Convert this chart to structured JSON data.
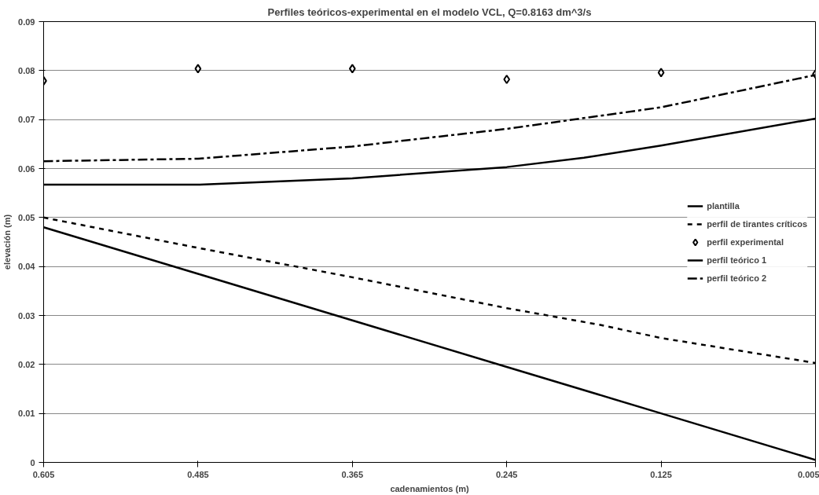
{
  "chart_data": {
    "type": "line",
    "title": "Perfiles teóricos-experimental en el modelo VCL, Q=0.8163 dm^3/s",
    "xlabel": "cadenamientos (m)",
    "ylabel": "elevación (m)",
    "xlim": [
      0.605,
      0.005
    ],
    "xticks": [
      0.605,
      0.485,
      0.365,
      0.245,
      0.125,
      0.005
    ],
    "ylim": [
      0,
      0.09
    ],
    "yticks": [
      0,
      0.01,
      0.02,
      0.03,
      0.04,
      0.05,
      0.06,
      0.07,
      0.08,
      0.09
    ],
    "grid": "y",
    "legend": "right",
    "series": [
      {
        "name": "plantilla",
        "color": "#000000",
        "line_style": "solid",
        "marker": "none",
        "x": [
          0.605,
          0.485,
          0.365,
          0.245,
          0.125,
          0.005
        ],
        "values": [
          0.048,
          0.0385,
          0.029,
          0.0195,
          0.01,
          0.0005
        ]
      },
      {
        "name": "perfil de tirantes críticos",
        "color": "#000000",
        "line_style": "dotted",
        "marker": "none",
        "x": [
          0.605,
          0.485,
          0.365,
          0.245,
          0.173,
          0.125,
          0.005
        ],
        "values": [
          0.05,
          0.0438,
          0.0378,
          0.0315,
          0.0281,
          0.0254,
          0.0203
        ]
      },
      {
        "name": "perfil experimental",
        "color": "#000000",
        "type": "scatter",
        "marker": "diamond",
        "x": [
          0.605,
          0.485,
          0.365,
          0.245,
          0.125,
          0.005
        ],
        "values": [
          0.0779,
          0.0804,
          0.0804,
          0.0782,
          0.0796,
          0.0793
        ]
      },
      {
        "name": "perfil teórico 1",
        "color": "#000000",
        "line_style": "solid",
        "marker": "none",
        "x": [
          0.605,
          0.485,
          0.365,
          0.245,
          0.185,
          0.125,
          0.005
        ],
        "values": [
          0.0567,
          0.0567,
          0.058,
          0.0603,
          0.0622,
          0.0647,
          0.0702
        ]
      },
      {
        "name": "perfil teórico 2",
        "color": "#000000",
        "line_style": "dashed",
        "marker": "none",
        "x": [
          0.605,
          0.485,
          0.365,
          0.245,
          0.125,
          0.005
        ],
        "values": [
          0.0615,
          0.062,
          0.0645,
          0.0681,
          0.0725,
          0.0791
        ]
      }
    ]
  }
}
